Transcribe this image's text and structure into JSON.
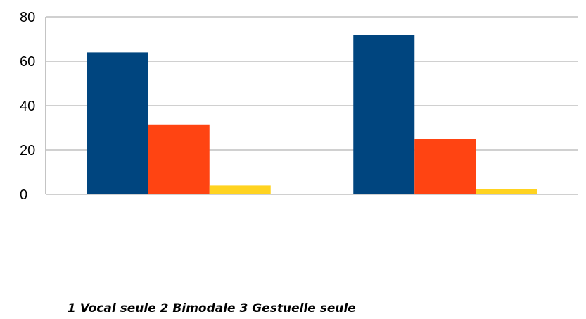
{
  "chart_data": {
    "type": "bar",
    "categories": [
      "",
      ""
    ],
    "series": [
      {
        "values": [
          64,
          72
        ],
        "color": "#00457F"
      },
      {
        "values": [
          31.5,
          25
        ],
        "color": "#FF4412"
      },
      {
        "values": [
          4,
          2.5
        ],
        "color": "#FFD320"
      }
    ],
    "ylim": [
      0,
      80
    ],
    "yticks": [
      0,
      20,
      40,
      60,
      80
    ],
    "grid": true,
    "legend": "none"
  },
  "caption": "1 Vocal seule 2 Bimodale 3 Gestuelle seule"
}
